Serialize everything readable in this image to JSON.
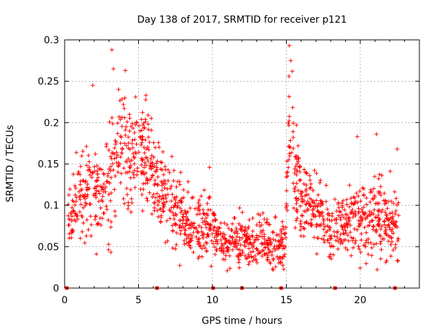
{
  "chart_data": {
    "type": "scatter",
    "title": "Day 138 of 2017, SRMTID for receiver p121",
    "xlabel": "GPS time / hours",
    "ylabel": "SRMTID / TECUs",
    "xlim": [
      0,
      24
    ],
    "ylim": [
      0,
      0.3
    ],
    "xticks": [
      0,
      5,
      10,
      15,
      20
    ],
    "xtick_labels": [
      "0",
      "5",
      "10",
      "15",
      "20"
    ],
    "yticks": [
      0,
      0.05,
      0.1,
      0.15,
      0.2,
      0.25,
      0.3
    ],
    "ytick_labels": [
      "0",
      "0.05",
      "0.1",
      "0.15",
      "0.2",
      "0.25",
      "0.3"
    ],
    "grid": true,
    "marker": "+",
    "color": "#ff0000",
    "series": [
      {
        "name": "SRMTID",
        "description": "Trend of the dense scatter: running median with spread",
        "x": [
          0.2,
          0.5,
          1.0,
          1.5,
          2.0,
          2.5,
          3.0,
          3.5,
          4.0,
          4.5,
          5.0,
          5.5,
          6.0,
          6.5,
          7.0,
          7.5,
          8.0,
          8.5,
          9.0,
          9.5,
          10.0,
          10.5,
          11.0,
          11.5,
          12.0,
          12.5,
          13.0,
          13.5,
          14.0,
          14.5,
          14.9,
          15.2,
          15.6,
          16.0,
          16.5,
          17.0,
          17.5,
          18.0,
          18.5,
          19.0,
          19.5,
          20.0,
          20.5,
          21.0,
          21.5,
          22.0,
          22.6
        ],
        "y": [
          0.095,
          0.1,
          0.11,
          0.115,
          0.12,
          0.11,
          0.13,
          0.16,
          0.17,
          0.16,
          0.17,
          0.16,
          0.14,
          0.12,
          0.105,
          0.095,
          0.08,
          0.07,
          0.07,
          0.075,
          0.075,
          0.06,
          0.055,
          0.055,
          0.06,
          0.055,
          0.06,
          0.055,
          0.05,
          0.05,
          0.055,
          0.2,
          0.14,
          0.1,
          0.1,
          0.09,
          0.08,
          0.075,
          0.07,
          0.075,
          0.085,
          0.08,
          0.09,
          0.085,
          0.08,
          0.075,
          0.08
        ],
        "spread": [
          0.03,
          0.03,
          0.035,
          0.035,
          0.035,
          0.035,
          0.05,
          0.06,
          0.05,
          0.04,
          0.04,
          0.035,
          0.04,
          0.035,
          0.03,
          0.03,
          0.03,
          0.025,
          0.025,
          0.025,
          0.025,
          0.02,
          0.02,
          0.02,
          0.02,
          0.02,
          0.02,
          0.02,
          0.018,
          0.018,
          0.02,
          0.06,
          0.05,
          0.035,
          0.03,
          0.03,
          0.025,
          0.025,
          0.025,
          0.03,
          0.03,
          0.03,
          0.035,
          0.035,
          0.035,
          0.03,
          0.035
        ],
        "peaks": [
          {
            "x": 3.2,
            "y": 0.288
          },
          {
            "x": 3.3,
            "y": 0.265
          },
          {
            "x": 4.1,
            "y": 0.263
          },
          {
            "x": 1.9,
            "y": 0.245
          },
          {
            "x": 5.5,
            "y": 0.233
          },
          {
            "x": 15.2,
            "y": 0.293
          },
          {
            "x": 15.3,
            "y": 0.275
          },
          {
            "x": 15.4,
            "y": 0.262
          },
          {
            "x": 19.8,
            "y": 0.183
          },
          {
            "x": 21.1,
            "y": 0.186
          },
          {
            "x": 22.5,
            "y": 0.168
          },
          {
            "x": 9.8,
            "y": 0.146
          }
        ]
      }
    ],
    "axis_markers": {
      "description": "Small filled markers on the x-axis",
      "x": [
        0.15,
        6.25,
        10.05,
        12.0,
        14.65,
        18.3,
        22.35
      ]
    }
  }
}
